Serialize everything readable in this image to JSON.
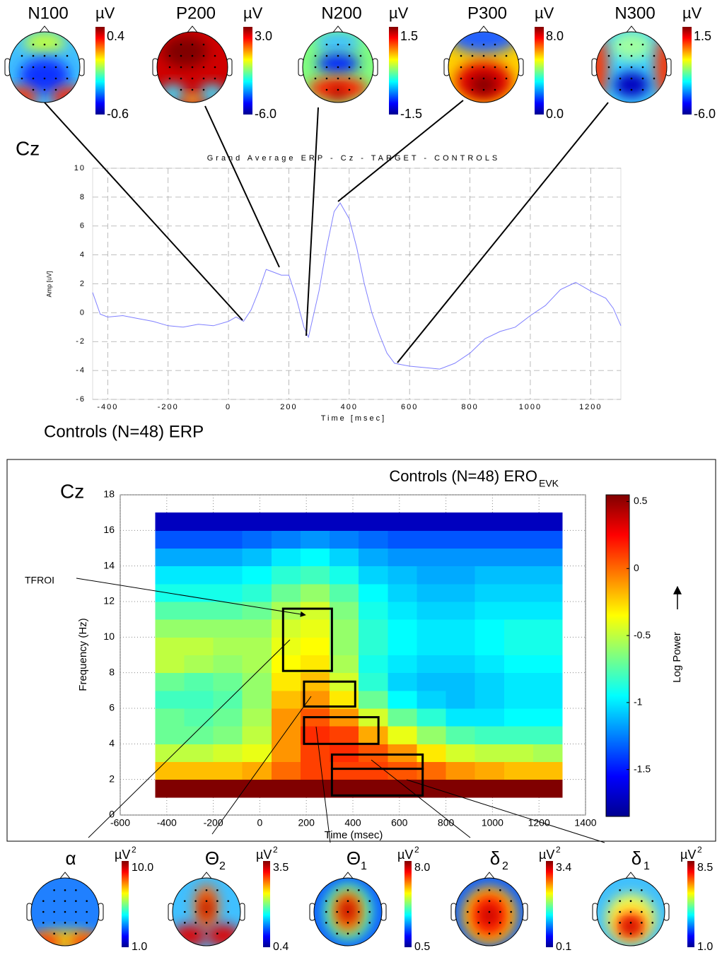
{
  "erp_topomaps": [
    {
      "label": "N100",
      "unit": "µV",
      "scale_max": "0.4",
      "scale_min": "-0.6"
    },
    {
      "label": "P200",
      "unit": "µV",
      "scale_max": "3.0",
      "scale_min": "-6.0"
    },
    {
      "label": "N200",
      "unit": "µV",
      "scale_max": "1.5",
      "scale_min": "-1.5"
    },
    {
      "label": "P300",
      "unit": "µV",
      "scale_max": "8.0",
      "scale_min": "0.0"
    },
    {
      "label": "N300",
      "unit": "µV",
      "scale_max": "1.5",
      "scale_min": "-6.0"
    }
  ],
  "erp_panel": {
    "electrode": "Cz",
    "caption": "Controls (N=48) ERP"
  },
  "ero_panel": {
    "electrode": "Cz",
    "annotation": "TFROI"
  },
  "chart_data": [
    {
      "type": "line",
      "title": "Grand Average ERP - Cz - TARGET - CONTROLS",
      "xlabel": "Time [msec]",
      "ylabel": "Amp [uV]",
      "x": [
        -450,
        -425,
        -400,
        -350,
        -300,
        -250,
        -200,
        -150,
        -100,
        -50,
        0,
        25,
        50,
        75,
        100,
        125,
        150,
        175,
        200,
        225,
        250,
        265,
        300,
        325,
        350,
        370,
        400,
        425,
        450,
        475,
        500,
        525,
        550,
        575,
        600,
        650,
        700,
        750,
        800,
        850,
        900,
        950,
        1000,
        1050,
        1100,
        1150,
        1200,
        1250,
        1275,
        1300
      ],
      "values": [
        1.4,
        -0.1,
        -0.3,
        -0.2,
        -0.4,
        -0.6,
        -0.9,
        -1.0,
        -0.8,
        -0.9,
        -0.6,
        -0.3,
        -0.6,
        0.2,
        1.5,
        3.0,
        2.8,
        2.6,
        2.6,
        1.0,
        -1.0,
        -1.7,
        1.5,
        4.5,
        7.0,
        7.6,
        6.5,
        4.5,
        2.0,
        0.0,
        -1.5,
        -2.8,
        -3.5,
        -3.6,
        -3.7,
        -3.8,
        -3.9,
        -3.5,
        -2.8,
        -1.8,
        -1.3,
        -1.0,
        -0.2,
        0.5,
        1.6,
        2.1,
        1.5,
        1.0,
        0.3,
        -0.9
      ],
      "color": "#8080ff",
      "xlim": [
        -450,
        1300
      ],
      "ylim": [
        -6,
        10
      ],
      "xticks": [
        -400,
        -200,
        0,
        200,
        400,
        600,
        800,
        1000,
        1200
      ],
      "yticks": [
        -6,
        -4,
        -2,
        0,
        2,
        4,
        6,
        8,
        10
      ],
      "grid": true
    },
    {
      "type": "heatmap",
      "title": "Controls (N=48) ERO",
      "title_subscript": "EVK",
      "xlabel": "Time (msec)",
      "ylabel": "Frequency (Hz)",
      "xlim": [
        -600,
        1400
      ],
      "ylim": [
        0,
        18
      ],
      "xticks": [
        -600,
        -400,
        -200,
        0,
        200,
        400,
        600,
        800,
        1000,
        1200,
        1400
      ],
      "yticks": [
        0,
        2,
        4,
        6,
        8,
        10,
        12,
        14,
        16,
        18
      ],
      "grid": true,
      "x_edges": [
        -450,
        -325,
        -200,
        -75,
        50,
        175,
        300,
        425,
        550,
        675,
        800,
        925,
        1050,
        1175,
        1300
      ],
      "y_edges": [
        1,
        2,
        3,
        4,
        5,
        6,
        7,
        8,
        9,
        10,
        11,
        12,
        13,
        14,
        15,
        16,
        17
      ],
      "z": [
        [
          0.55,
          0.55,
          0.55,
          0.55,
          0.55,
          0.55,
          0.55,
          0.55,
          0.55,
          0.55,
          0.55,
          0.55,
          0.55,
          0.55
        ],
        [
          -0.2,
          -0.2,
          -0.2,
          -0.15,
          0,
          0.1,
          0.1,
          0.1,
          0.05,
          0,
          -0.1,
          -0.15,
          -0.2,
          -0.2
        ],
        [
          -0.5,
          -0.5,
          -0.45,
          -0.4,
          -0.1,
          0.1,
          0.15,
          0.05,
          -0.1,
          -0.3,
          -0.45,
          -0.5,
          -0.5,
          -0.55
        ],
        [
          -0.7,
          -0.7,
          -0.65,
          -0.5,
          -0.1,
          0.15,
          0.1,
          -0.15,
          -0.4,
          -0.6,
          -0.75,
          -0.8,
          -0.8,
          -0.8
        ],
        [
          -0.7,
          -0.75,
          -0.7,
          -0.55,
          -0.1,
          0.05,
          -0.1,
          -0.45,
          -0.7,
          -0.85,
          -1.0,
          -1.0,
          -0.95,
          -0.95
        ],
        [
          -0.8,
          -0.8,
          -0.75,
          -0.6,
          -0.2,
          -0.1,
          -0.3,
          -0.7,
          -0.95,
          -1.05,
          -1.1,
          -1.05,
          -1.0,
          -1.0
        ],
        [
          -0.7,
          -0.75,
          -0.7,
          -0.6,
          -0.3,
          -0.2,
          -0.45,
          -0.85,
          -1.05,
          -1.1,
          -1.1,
          -1.05,
          -1.0,
          -1.0
        ],
        [
          -0.5,
          -0.55,
          -0.6,
          -0.55,
          -0.35,
          -0.3,
          -0.55,
          -0.9,
          -1.0,
          -1.05,
          -1.05,
          -1.0,
          -0.95,
          -0.95
        ],
        [
          -0.5,
          -0.5,
          -0.55,
          -0.55,
          -0.4,
          -0.35,
          -0.6,
          -0.85,
          -0.95,
          -1.0,
          -1.0,
          -0.95,
          -0.9,
          -0.9
        ],
        [
          -0.6,
          -0.6,
          -0.6,
          -0.6,
          -0.45,
          -0.4,
          -0.6,
          -0.85,
          -0.95,
          -1.0,
          -1.0,
          -0.95,
          -0.9,
          -0.9
        ],
        [
          -0.75,
          -0.75,
          -0.75,
          -0.7,
          -0.55,
          -0.45,
          -0.65,
          -0.9,
          -1.0,
          -1.05,
          -1.05,
          -1.0,
          -1.0,
          -1.0
        ],
        [
          -0.9,
          -0.9,
          -0.9,
          -0.85,
          -0.7,
          -0.6,
          -0.75,
          -0.95,
          -1.05,
          -1.1,
          -1.1,
          -1.05,
          -1.05,
          -1.05
        ],
        [
          -1.0,
          -1.0,
          -1.0,
          -0.95,
          -0.85,
          -0.8,
          -0.9,
          -1.05,
          -1.1,
          -1.15,
          -1.15,
          -1.1,
          -1.1,
          -1.1
        ],
        [
          -1.15,
          -1.15,
          -1.15,
          -1.1,
          -1.0,
          -0.95,
          -1.05,
          -1.15,
          -1.2,
          -1.2,
          -1.2,
          -1.2,
          -1.2,
          -1.2
        ],
        [
          -1.35,
          -1.35,
          -1.35,
          -1.3,
          -1.25,
          -1.2,
          -1.25,
          -1.3,
          -1.35,
          -1.35,
          -1.35,
          -1.35,
          -1.35,
          -1.35
        ],
        [
          -1.7,
          -1.7,
          -1.7,
          -1.7,
          -1.7,
          -1.7,
          -1.7,
          -1.7,
          -1.7,
          -1.7,
          -1.7,
          -1.7,
          -1.7,
          -1.7
        ]
      ],
      "colorbar": {
        "label": "Log Power",
        "clim": [
          -1.85,
          0.55
        ],
        "ticks": [
          0.5,
          0,
          -0.5,
          -1,
          -1.5
        ]
      },
      "rois": [
        {
          "symbol": "α",
          "x": [
            100,
            310
          ],
          "y": [
            8.1,
            11.6
          ],
          "unit": "µV",
          "unit_power": "2",
          "scale_max": "10.0",
          "scale_min": "1.0"
        },
        {
          "symbol": "Θ",
          "subscript": "2",
          "x": [
            190,
            410
          ],
          "y": [
            6.1,
            7.5
          ],
          "unit": "µV",
          "unit_power": "2",
          "scale_max": "3.5",
          "scale_min": "0.4"
        },
        {
          "symbol": "Θ",
          "subscript": "1",
          "x": [
            190,
            510
          ],
          "y": [
            4.0,
            5.5
          ],
          "unit": "µV",
          "unit_power": "2",
          "scale_max": "8.0",
          "scale_min": "0.5"
        },
        {
          "symbol": "δ",
          "subscript": "2",
          "x": [
            310,
            700
          ],
          "y": [
            2.6,
            3.4
          ],
          "unit": "µV",
          "unit_power": "2",
          "scale_max": "3.4",
          "scale_min": "0.1"
        },
        {
          "symbol": "δ",
          "subscript": "1",
          "x": [
            310,
            700
          ],
          "y": [
            1.1,
            2.6
          ],
          "unit": "µV",
          "unit_power": "2",
          "scale_max": "8.5",
          "scale_min": "1.0"
        }
      ]
    }
  ]
}
